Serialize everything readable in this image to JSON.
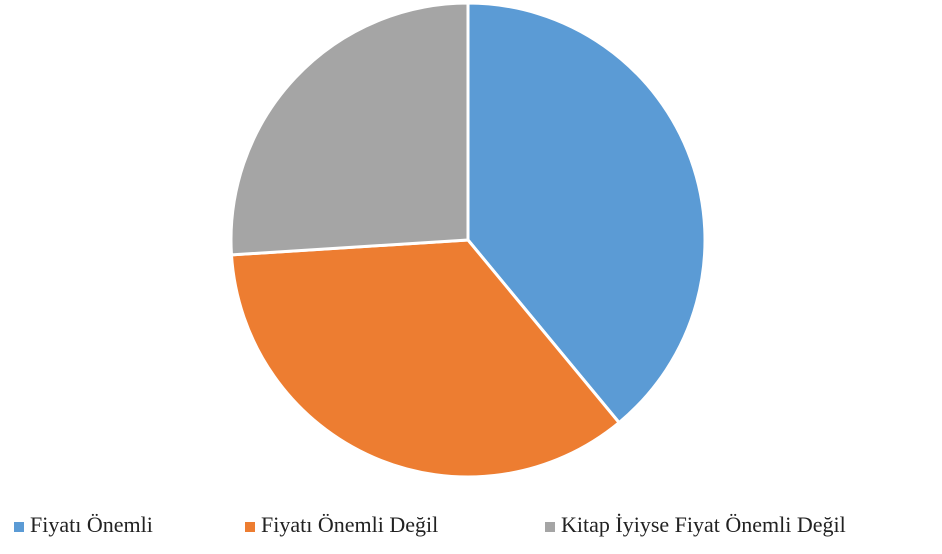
{
  "chart_data": {
    "type": "pie",
    "categories": [
      "Fiyatı Önemli",
      "Fiyatı Önemli Değil",
      "Kitap İyiyse Fiyat Önemli Değil"
    ],
    "values": [
      39,
      35,
      26
    ],
    "colors": [
      "#5b9bd5",
      "#ed7d31",
      "#a5a5a5"
    ],
    "legend": "bottom"
  }
}
